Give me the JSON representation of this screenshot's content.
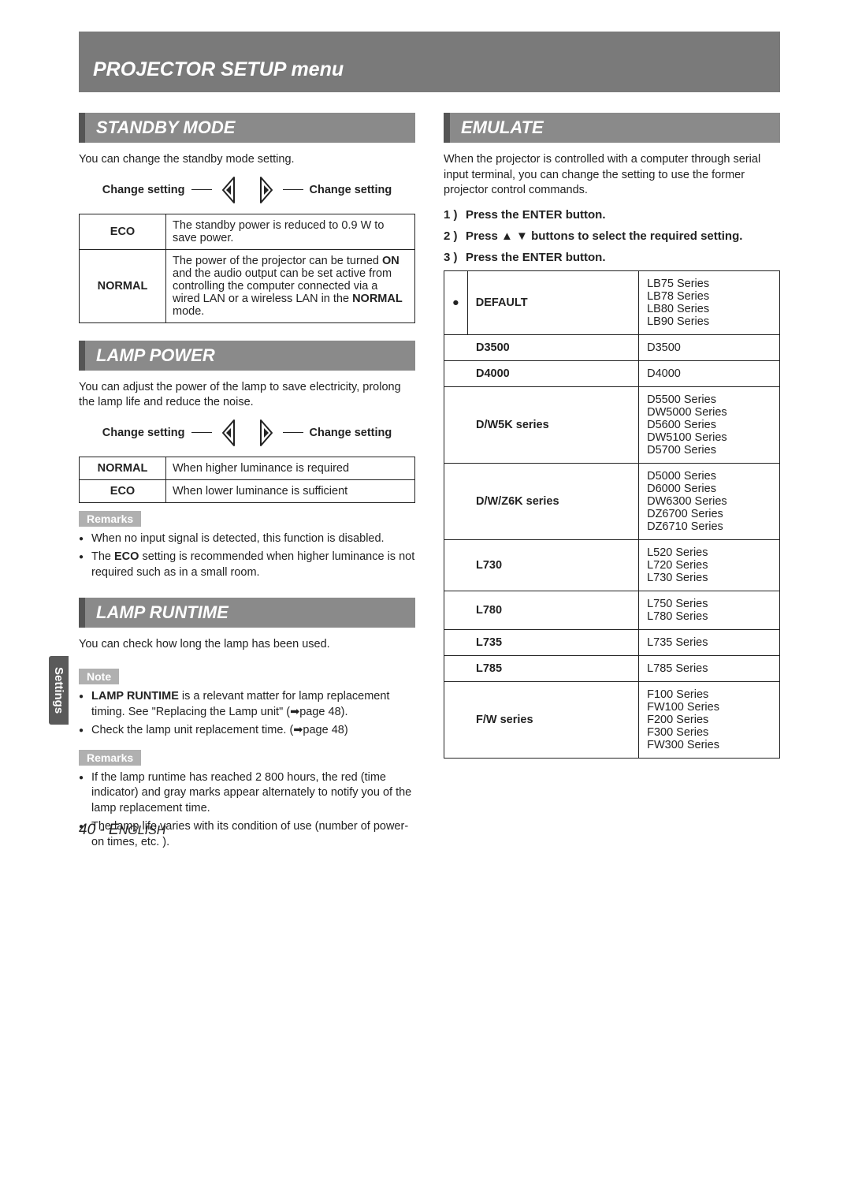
{
  "page_title": "PROJECTOR SETUP menu",
  "sidebar_tab": "Settings",
  "footer": {
    "page": "40 -",
    "lang": "ENGLISH"
  },
  "standby": {
    "heading": "STANDBY MODE",
    "intro": "You can change the standby mode setting.",
    "change_left": "Change setting",
    "change_right": "Change setting",
    "rows": [
      {
        "name": "ECO",
        "desc": "The standby power is reduced to 0.9 W to save power."
      },
      {
        "name": "NORMAL",
        "desc_html": "The power of the projector can be turned <b>ON</b> and the audio output can be set active from controlling the computer connected via a wired LAN or a wireless LAN in the <b>NORMAL</b> mode."
      }
    ]
  },
  "lamp_power": {
    "heading": "LAMP POWER",
    "intro": "You can adjust the power of the lamp to save electricity, prolong the lamp life and reduce the noise.",
    "change_left": "Change setting",
    "change_right": "Change setting",
    "rows": [
      {
        "name": "NORMAL",
        "desc": "When higher luminance is required"
      },
      {
        "name": "ECO",
        "desc": "When lower luminance is sufficient"
      }
    ],
    "remarks_label": "Remarks",
    "remarks": [
      "When no input signal is detected, this function is disabled.",
      "The <b>ECO</b> setting is recommended when higher luminance is not required such as in a small room."
    ]
  },
  "lamp_runtime": {
    "heading": "LAMP RUNTIME",
    "intro": "You can check how long the lamp has been used.",
    "note_label": "Note",
    "notes": [
      "<b>LAMP RUNTIME</b> is a relevant matter for lamp replacement timing. See \"Replacing the Lamp unit\" (➡page 48).",
      "Check the lamp unit replacement time. (➡page 48)"
    ],
    "remarks_label": "Remarks",
    "remarks": [
      "If the lamp runtime has reached 2 800 hours, the red (time indicator) and gray marks appear alternately to notify you of the lamp replacement time.",
      "The lamp life varies with its condition of use (number of power-on times, etc. )."
    ]
  },
  "emulate": {
    "heading": "EMULATE",
    "intro": "When the projector is controlled with a computer through serial input terminal, you can change the setting to use the former projector control commands.",
    "steps": [
      "Press the ENTER button.",
      "Press ▲ ▼ buttons to select the required setting.",
      "Press the ENTER button."
    ],
    "rows": [
      {
        "dot": true,
        "name": "DEFAULT",
        "val": "LB75 Series\nLB78 Series\nLB80 Series\nLB90 Series"
      },
      {
        "name": "D3500",
        "val": "D3500"
      },
      {
        "name": "D4000",
        "val": "D4000"
      },
      {
        "name": "D/W5K series",
        "val": "D5500 Series\nDW5000 Series\nD5600 Series\nDW5100 Series\nD5700 Series"
      },
      {
        "name": "D/W/Z6K series",
        "val": "D5000 Series\nD6000 Series\nDW6300 Series\nDZ6700 Series\nDZ6710 Series"
      },
      {
        "name": "L730",
        "val": "L520 Series\nL720 Series\nL730 Series"
      },
      {
        "name": "L780",
        "val": "L750 Series\nL780 Series"
      },
      {
        "name": "L735",
        "val": "L735 Series"
      },
      {
        "name": "L785",
        "val": "L785 Series"
      },
      {
        "name": "F/W series",
        "val": "F100 Series\nFW100 Series\nF200 Series\nF300 Series\nFW300 Series"
      }
    ]
  }
}
